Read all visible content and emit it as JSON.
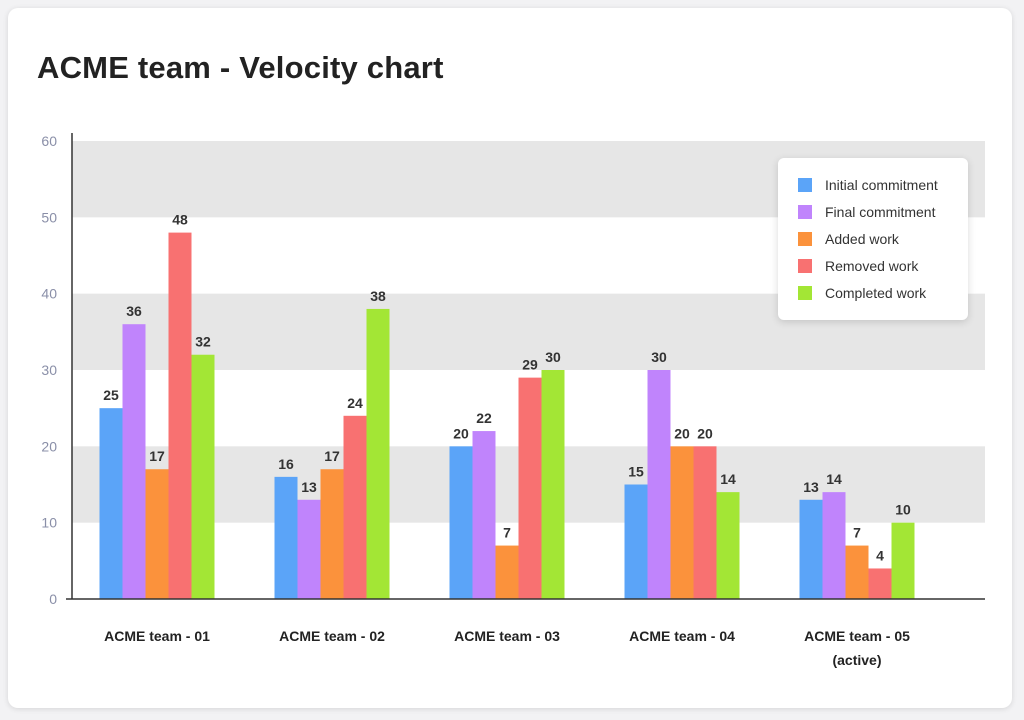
{
  "title": "ACME team - Velocity chart",
  "chart_data": {
    "type": "bar",
    "title": "ACME team - Velocity chart",
    "xlabel": "",
    "ylabel": "",
    "ylim": [
      0,
      60
    ],
    "yticks": [
      "0",
      "10",
      "20",
      "30",
      "40",
      "50",
      "60"
    ],
    "categories": [
      [
        "ACME team - 01"
      ],
      [
        "ACME team - 02"
      ],
      [
        "ACME team - 03"
      ],
      [
        "ACME team - 04"
      ],
      [
        "ACME team - 05",
        "(active)"
      ]
    ],
    "series": [
      {
        "name": "Initial commitment",
        "color": "#5ba4f8",
        "values": [
          25,
          16,
          20,
          15,
          13
        ]
      },
      {
        "name": "Final commitment",
        "color": "#c084fc",
        "values": [
          36,
          13,
          22,
          30,
          14
        ]
      },
      {
        "name": "Added work",
        "color": "#fb923c",
        "values": [
          17,
          17,
          7,
          20,
          7
        ]
      },
      {
        "name": "Removed work",
        "color": "#f87171",
        "values": [
          48,
          24,
          29,
          20,
          4
        ]
      },
      {
        "name": "Completed work",
        "color": "#a3e635",
        "values": [
          32,
          38,
          30,
          14,
          10
        ]
      }
    ],
    "grid": "alternating horizontal bands",
    "legend_position": "top-right"
  }
}
